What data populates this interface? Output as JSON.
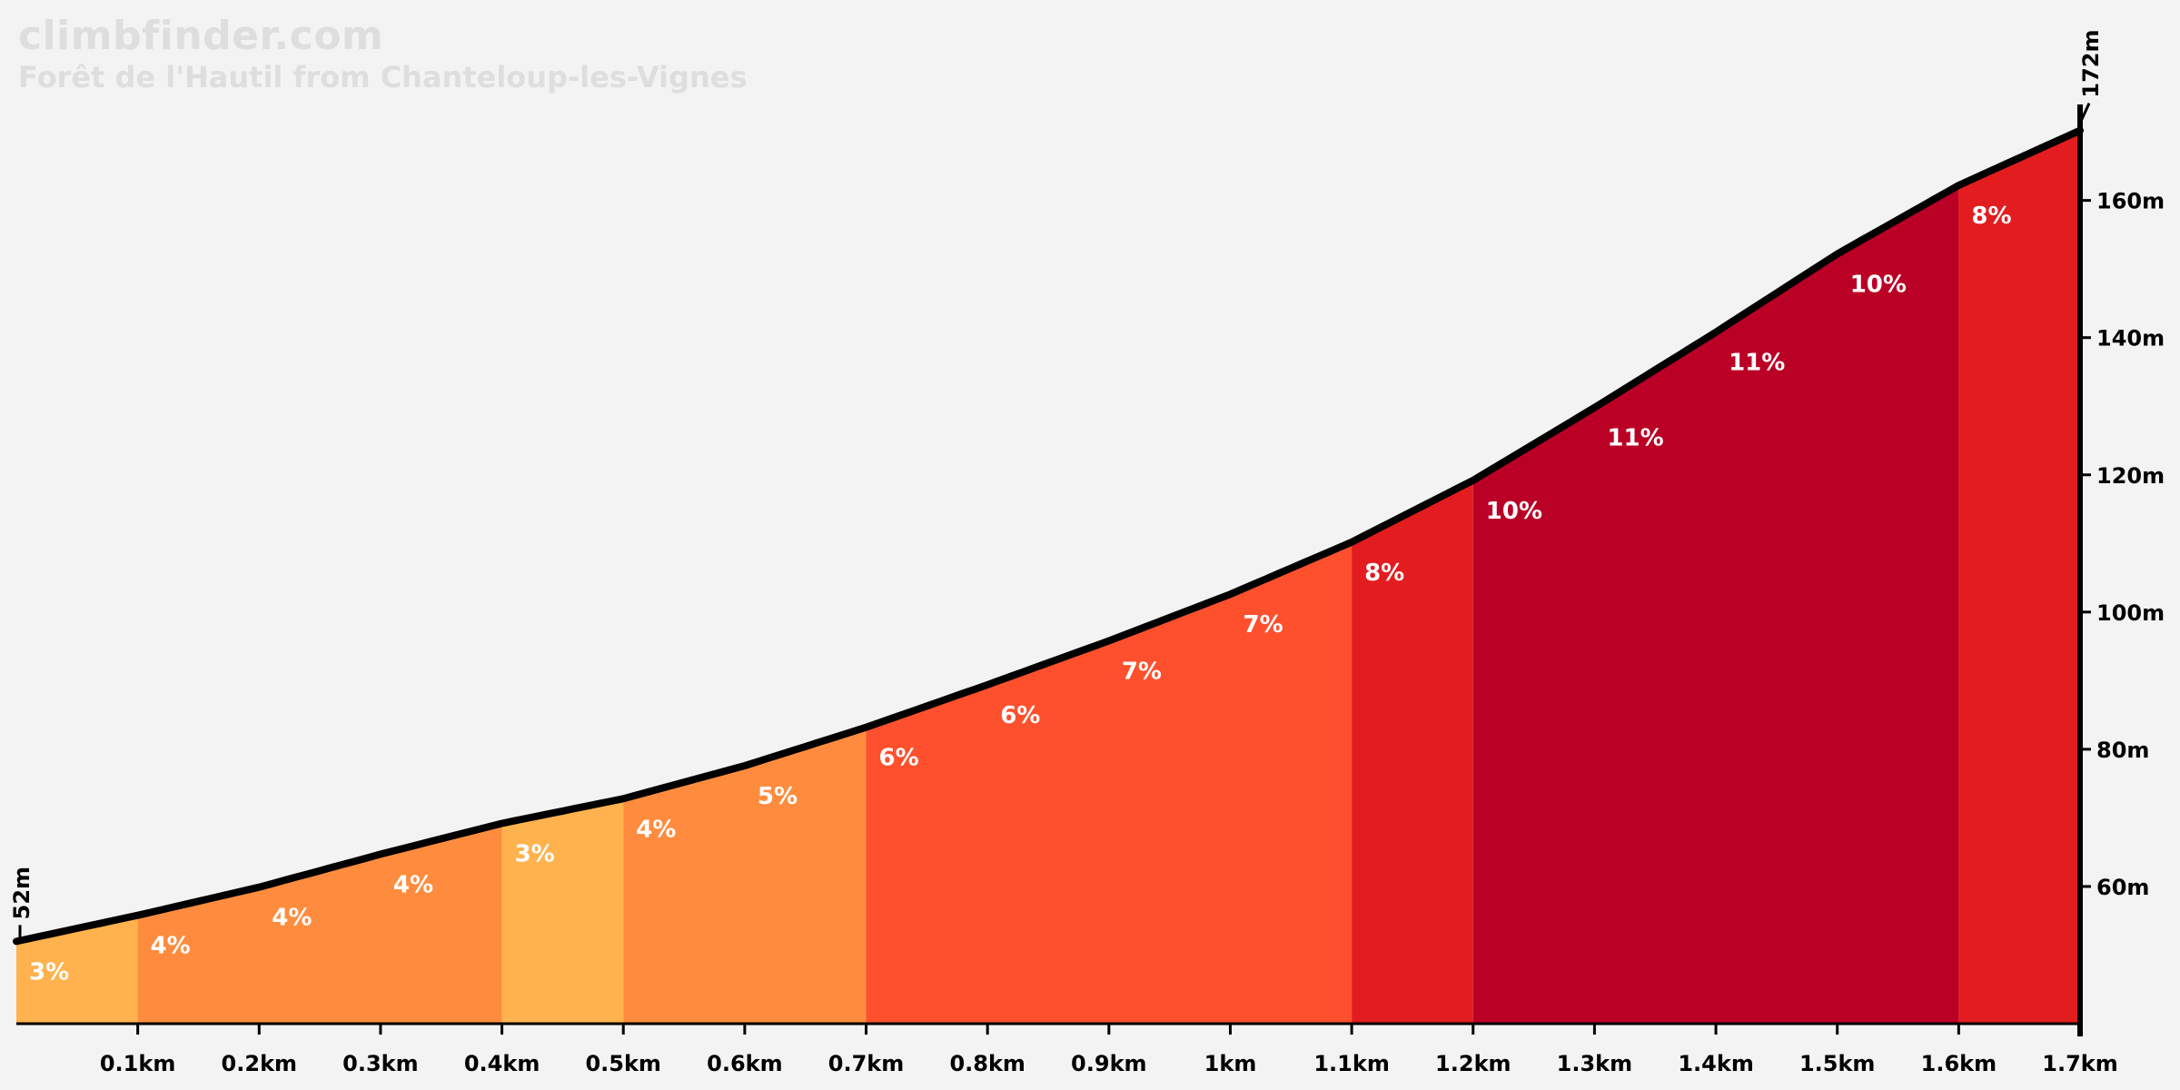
{
  "header": {
    "site": "climbfinder.com",
    "climb_name": "Forêt de l'Hautil from Chanteloup-les-Vignes"
  },
  "chart_data": {
    "type": "area",
    "title": "climbfinder.com",
    "subtitle": "Forêt de l'Hautil from Chanteloup-les-Vignes",
    "xlabel": "",
    "ylabel": "",
    "x_unit": "km",
    "y_unit": "m",
    "xlim": [
      0,
      1.7
    ],
    "ylim": [
      40,
      172
    ],
    "x_ticks": [
      "0.1km",
      "0.2km",
      "0.3km",
      "0.4km",
      "0.5km",
      "0.6km",
      "0.7km",
      "0.8km",
      "0.9km",
      "1km",
      "1.1km",
      "1.2km",
      "1.3km",
      "1.4km",
      "1.5km",
      "1.6km",
      "1.7km"
    ],
    "x_tick_values": [
      0.1,
      0.2,
      0.3,
      0.4,
      0.5,
      0.6,
      0.7,
      0.8,
      0.9,
      1.0,
      1.1,
      1.2,
      1.3,
      1.4,
      1.5,
      1.6,
      1.7
    ],
    "y_ticks": [
      "60m",
      "80m",
      "100m",
      "120m",
      "140m",
      "160m"
    ],
    "y_tick_values": [
      60,
      80,
      100,
      120,
      140,
      160
    ],
    "start_label": "52m",
    "end_label": "172m",
    "profile": [
      {
        "x": 0.0,
        "y": 52
      },
      {
        "x": 0.1,
        "y": 55.8
      },
      {
        "x": 0.2,
        "y": 59.9
      },
      {
        "x": 0.3,
        "y": 64.7
      },
      {
        "x": 0.4,
        "y": 69.2
      },
      {
        "x": 0.5,
        "y": 72.8
      },
      {
        "x": 0.6,
        "y": 77.6
      },
      {
        "x": 0.7,
        "y": 83.2
      },
      {
        "x": 0.8,
        "y": 89.4
      },
      {
        "x": 0.9,
        "y": 95.8
      },
      {
        "x": 1.0,
        "y": 102.6
      },
      {
        "x": 1.1,
        "y": 110.2
      },
      {
        "x": 1.2,
        "y": 119.2
      },
      {
        "x": 1.3,
        "y": 129.8
      },
      {
        "x": 1.4,
        "y": 140.8
      },
      {
        "x": 1.5,
        "y": 152.2
      },
      {
        "x": 1.6,
        "y": 162.2
      },
      {
        "x": 1.7,
        "y": 170.2
      }
    ],
    "segments": [
      {
        "x0": 0.0,
        "x1": 0.1,
        "gradient": "3%",
        "color": "#ffb24d"
      },
      {
        "x0": 0.1,
        "x1": 0.4,
        "gradient": "4%",
        "color": "#ff8c3e"
      },
      {
        "x0": 0.4,
        "x1": 0.5,
        "gradient": "3%",
        "color": "#ffb24d"
      },
      {
        "x0": 0.5,
        "x1": 0.7,
        "gradient": "5%",
        "color": "#ff8c3e"
      },
      {
        "x0": 0.7,
        "x1": 1.1,
        "gradient": "7%",
        "color": "#fe502d"
      },
      {
        "x0": 1.1,
        "x1": 1.2,
        "gradient": "8%",
        "color": "#e31c1f"
      },
      {
        "x0": 1.2,
        "x1": 1.6,
        "gradient": "11%",
        "color": "#bb0026"
      },
      {
        "x0": 1.6,
        "x1": 1.7,
        "gradient": "8%",
        "color": "#e31c1f"
      }
    ],
    "gradient_labels": [
      {
        "x": 0.0,
        "y": 52,
        "text": "3%"
      },
      {
        "x": 0.1,
        "y": 55.8,
        "text": "4%"
      },
      {
        "x": 0.2,
        "y": 59.9,
        "text": "4%"
      },
      {
        "x": 0.3,
        "y": 64.7,
        "text": "4%"
      },
      {
        "x": 0.4,
        "y": 69.2,
        "text": "3%"
      },
      {
        "x": 0.5,
        "y": 72.8,
        "text": "4%"
      },
      {
        "x": 0.6,
        "y": 77.6,
        "text": "5%"
      },
      {
        "x": 0.7,
        "y": 83.2,
        "text": "6%"
      },
      {
        "x": 0.8,
        "y": 89.4,
        "text": "6%"
      },
      {
        "x": 0.9,
        "y": 95.8,
        "text": "7%"
      },
      {
        "x": 1.0,
        "y": 102.6,
        "text": "7%"
      },
      {
        "x": 1.1,
        "y": 110.2,
        "text": "8%"
      },
      {
        "x": 1.2,
        "y": 119.2,
        "text": "10%"
      },
      {
        "x": 1.3,
        "y": 129.8,
        "text": "11%"
      },
      {
        "x": 1.4,
        "y": 140.8,
        "text": "11%"
      },
      {
        "x": 1.5,
        "y": 152.2,
        "text": "10%"
      },
      {
        "x": 1.6,
        "y": 162.2,
        "text": "8%"
      }
    ],
    "colors": {
      "background": "#f3f3f3",
      "profile_line": "#000000",
      "axis": "#000000",
      "label_text": "#ffffff"
    },
    "grid": false,
    "legend": "none"
  }
}
